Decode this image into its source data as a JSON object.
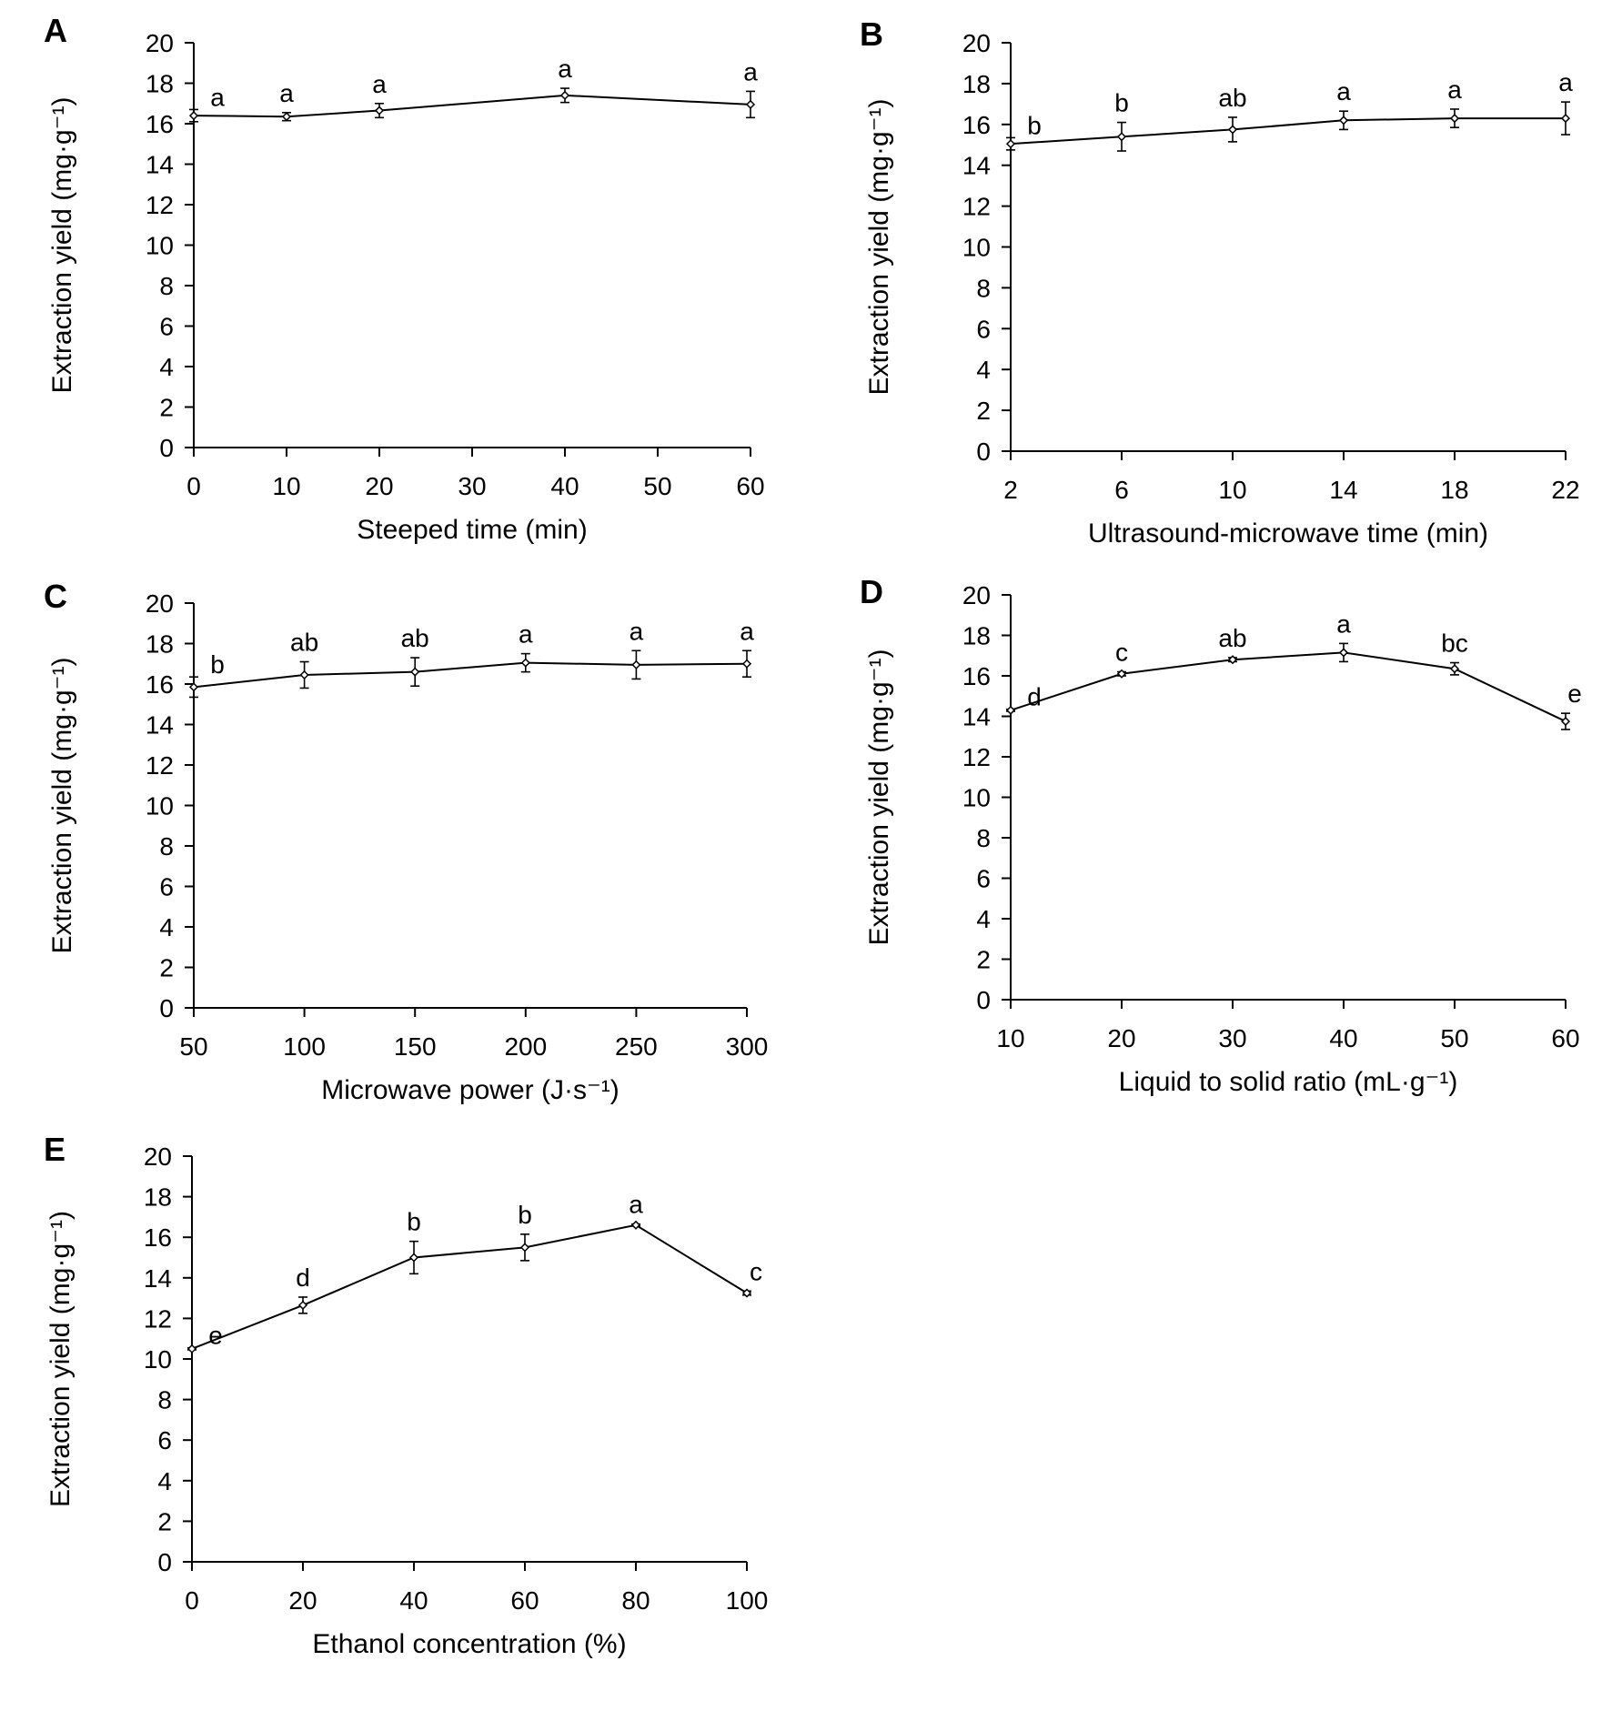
{
  "chart_data": [
    {
      "panel": "A",
      "type": "line",
      "xlabel": "Steeped time (min)",
      "ylabel": "Extraction yield (mg·g⁻¹)",
      "x_ticks": [
        0,
        10,
        20,
        30,
        40,
        50,
        60
      ],
      "xlim": [
        0,
        60
      ],
      "y_ticks": [
        0,
        2,
        4,
        6,
        8,
        10,
        12,
        14,
        16,
        18,
        20
      ],
      "ylim": [
        0,
        20
      ],
      "x": [
        0,
        10,
        20,
        40,
        60
      ],
      "values": [
        16.4,
        16.35,
        16.65,
        17.4,
        16.95
      ],
      "errors": [
        0.3,
        0.2,
        0.35,
        0.35,
        0.65
      ],
      "labels": [
        "a",
        "a",
        "a",
        "a",
        "a"
      ]
    },
    {
      "panel": "B",
      "type": "line",
      "xlabel": "Ultrasound-microwave time (min)",
      "ylabel": "Extraction yield (mg·g⁻¹)",
      "x_ticks": [
        2,
        6,
        10,
        14,
        18,
        22
      ],
      "xlim": [
        2,
        22
      ],
      "y_ticks": [
        0,
        2,
        4,
        6,
        8,
        10,
        12,
        14,
        16,
        18,
        20
      ],
      "ylim": [
        0,
        20
      ],
      "x": [
        2,
        6,
        10,
        14,
        18,
        22
      ],
      "values": [
        15.05,
        15.4,
        15.75,
        16.2,
        16.3,
        16.3
      ],
      "errors": [
        0.3,
        0.7,
        0.6,
        0.45,
        0.45,
        0.8
      ],
      "labels": [
        "b",
        "b",
        "ab",
        "a",
        "a",
        "a"
      ]
    },
    {
      "panel": "C",
      "type": "line",
      "xlabel": "Microwave power (J·s⁻¹)",
      "ylabel": "Extraction yield (mg·g⁻¹)",
      "x_ticks": [
        50,
        100,
        150,
        200,
        250,
        300
      ],
      "xlim": [
        50,
        300
      ],
      "y_ticks": [
        0,
        2,
        4,
        6,
        8,
        10,
        12,
        14,
        16,
        18,
        20
      ],
      "ylim": [
        0,
        20
      ],
      "x": [
        50,
        100,
        150,
        200,
        250,
        300
      ],
      "values": [
        15.85,
        16.45,
        16.6,
        17.05,
        16.95,
        17.0
      ],
      "errors": [
        0.5,
        0.65,
        0.7,
        0.45,
        0.7,
        0.65
      ],
      "labels": [
        "b",
        "ab",
        "ab",
        "a",
        "a",
        "a"
      ]
    },
    {
      "panel": "D",
      "type": "line",
      "xlabel": "Liquid to solid ratio (mL·g⁻¹)",
      "ylabel": "Extraction yield (mg·g⁻¹)",
      "x_ticks": [
        10,
        20,
        30,
        40,
        50,
        60
      ],
      "xlim": [
        10,
        60
      ],
      "y_ticks": [
        0,
        2,
        4,
        6,
        8,
        10,
        12,
        14,
        16,
        18,
        20
      ],
      "ylim": [
        0,
        20
      ],
      "x": [
        10,
        20,
        30,
        40,
        50,
        60
      ],
      "values": [
        14.3,
        16.1,
        16.8,
        17.15,
        16.35,
        13.75
      ],
      "errors": [
        0.05,
        0.1,
        0.1,
        0.45,
        0.3,
        0.4
      ],
      "labels": [
        "d",
        "c",
        "ab",
        "a",
        "bc",
        "e"
      ]
    },
    {
      "panel": "E",
      "type": "line",
      "xlabel": "Ethanol concentration (%)",
      "ylabel": "Extraction yield (mg·g⁻¹)",
      "x_ticks": [
        0,
        20,
        40,
        60,
        80,
        100
      ],
      "xlim": [
        0,
        100
      ],
      "y_ticks": [
        0,
        2,
        4,
        6,
        8,
        10,
        12,
        14,
        16,
        18,
        20
      ],
      "ylim": [
        0,
        20
      ],
      "x": [
        0,
        20,
        40,
        60,
        80,
        100
      ],
      "values": [
        10.5,
        12.65,
        15.0,
        15.5,
        16.6,
        13.25
      ],
      "errors": [
        0.05,
        0.4,
        0.8,
        0.65,
        0.05,
        0.1
      ],
      "labels": [
        "e",
        "d",
        "b",
        "b",
        "a",
        "c"
      ]
    }
  ]
}
